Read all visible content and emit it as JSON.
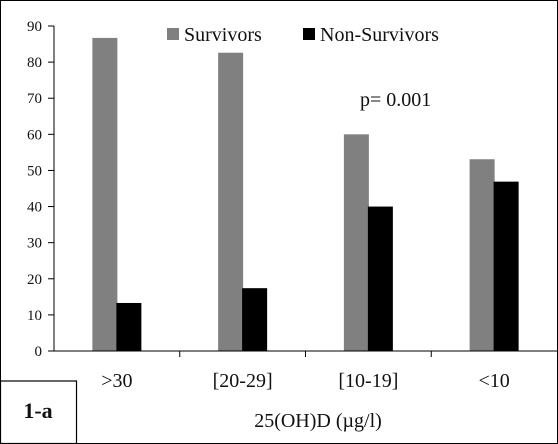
{
  "chart_data": {
    "type": "bar",
    "categories": [
      ">30",
      "[20-29]",
      "[10-19]",
      "<10"
    ],
    "series": [
      {
        "name": "Survivors",
        "values": [
          86.7,
          82.6,
          60.0,
          53.1
        ],
        "color": "#808080"
      },
      {
        "name": "Non-Survivors",
        "values": [
          13.3,
          17.4,
          40.0,
          46.9
        ],
        "color": "#000000"
      }
    ],
    "title": "",
    "xlabel": "25(OH)D (µg/l)",
    "ylabel": "",
    "ylim": [
      0,
      90
    ],
    "yticks": [
      0,
      10,
      20,
      30,
      40,
      50,
      60,
      70,
      80,
      90
    ],
    "grid": false,
    "legend_position": "top-right",
    "annotation": "p= 0.001",
    "panel_label": "1-a"
  }
}
